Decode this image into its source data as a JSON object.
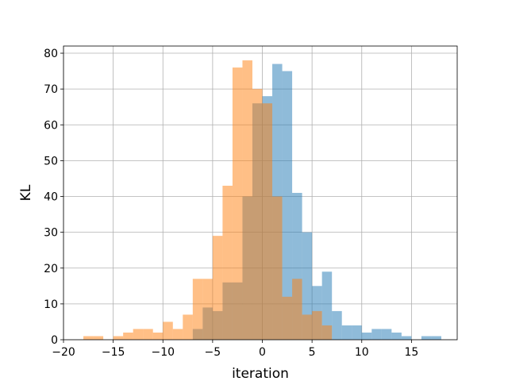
{
  "chart_data": {
    "type": "bar",
    "xlabel": "iteration",
    "ylabel": "KL",
    "xlim": [
      -20,
      19.6
    ],
    "ylim": [
      0,
      82
    ],
    "xticks": [
      -20,
      -15,
      -10,
      -5,
      0,
      5,
      10,
      15
    ],
    "yticks": [
      0,
      10,
      20,
      30,
      40,
      50,
      60,
      70,
      80
    ],
    "grid": true,
    "series": [
      {
        "color": "#1f77b4",
        "alpha": 0.5,
        "bins": [
          {
            "x0": -7,
            "x1": -6,
            "count": 3
          },
          {
            "x0": -6,
            "x1": -5,
            "count": 9
          },
          {
            "x0": -5,
            "x1": -4,
            "count": 8
          },
          {
            "x0": -4,
            "x1": -3,
            "count": 16
          },
          {
            "x0": -3,
            "x1": -2,
            "count": 16
          },
          {
            "x0": -2,
            "x1": -1,
            "count": 40
          },
          {
            "x0": -1,
            "x1": 0,
            "count": 66
          },
          {
            "x0": 0,
            "x1": 1,
            "count": 68
          },
          {
            "x0": 1,
            "x1": 2,
            "count": 77
          },
          {
            "x0": 2,
            "x1": 3,
            "count": 75
          },
          {
            "x0": 3,
            "x1": 4,
            "count": 41
          },
          {
            "x0": 4,
            "x1": 5,
            "count": 30
          },
          {
            "x0": 5,
            "x1": 6,
            "count": 15
          },
          {
            "x0": 6,
            "x1": 7,
            "count": 19
          },
          {
            "x0": 7,
            "x1": 8,
            "count": 8
          },
          {
            "x0": 8,
            "x1": 9,
            "count": 4
          },
          {
            "x0": 9,
            "x1": 10,
            "count": 4
          },
          {
            "x0": 10,
            "x1": 11,
            "count": 2
          },
          {
            "x0": 11,
            "x1": 12,
            "count": 3
          },
          {
            "x0": 12,
            "x1": 13,
            "count": 3
          },
          {
            "x0": 13,
            "x1": 14,
            "count": 2
          },
          {
            "x0": 14,
            "x1": 15,
            "count": 1
          },
          {
            "x0": 16,
            "x1": 17,
            "count": 1
          },
          {
            "x0": 17,
            "x1": 18,
            "count": 1
          }
        ]
      },
      {
        "color": "#ff7f0e",
        "alpha": 0.5,
        "bins": [
          {
            "x0": -18,
            "x1": -17,
            "count": 1
          },
          {
            "x0": -17,
            "x1": -16,
            "count": 1
          },
          {
            "x0": -15,
            "x1": -14,
            "count": 1
          },
          {
            "x0": -14,
            "x1": -13,
            "count": 2
          },
          {
            "x0": -13,
            "x1": -12,
            "count": 3
          },
          {
            "x0": -12,
            "x1": -11,
            "count": 3
          },
          {
            "x0": -11,
            "x1": -10,
            "count": 2
          },
          {
            "x0": -10,
            "x1": -9,
            "count": 5
          },
          {
            "x0": -9,
            "x1": -8,
            "count": 3
          },
          {
            "x0": -8,
            "x1": -7,
            "count": 7
          },
          {
            "x0": -7,
            "x1": -6,
            "count": 17
          },
          {
            "x0": -6,
            "x1": -5,
            "count": 17
          },
          {
            "x0": -5,
            "x1": -4,
            "count": 29
          },
          {
            "x0": -4,
            "x1": -3,
            "count": 43
          },
          {
            "x0": -3,
            "x1": -2,
            "count": 76
          },
          {
            "x0": -2,
            "x1": -1,
            "count": 78
          },
          {
            "x0": -1,
            "x1": 0,
            "count": 70
          },
          {
            "x0": 0,
            "x1": 1,
            "count": 66
          },
          {
            "x0": 1,
            "x1": 2,
            "count": 40
          },
          {
            "x0": 2,
            "x1": 3,
            "count": 12
          },
          {
            "x0": 3,
            "x1": 4,
            "count": 17
          },
          {
            "x0": 4,
            "x1": 5,
            "count": 7
          },
          {
            "x0": 5,
            "x1": 6,
            "count": 8
          },
          {
            "x0": 6,
            "x1": 7,
            "count": 4
          }
        ]
      }
    ]
  }
}
